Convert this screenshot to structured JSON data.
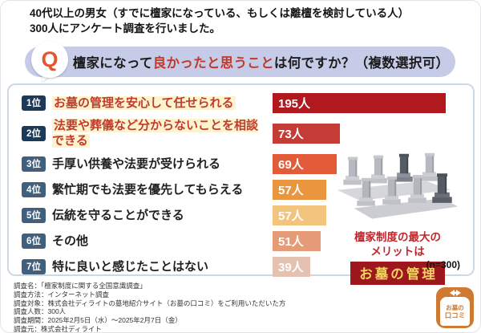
{
  "page": {
    "intro_line1": "40代以上の男女（すでに檀家になっている、もしくは離檀を検討している人）",
    "intro_line2": "300人にアンケート調査を行いました。",
    "question": {
      "icon": "Q",
      "prefix": "檀家になって",
      "highlight": "良かったと思うこと",
      "suffix": "は何ですか？（複数選択可）"
    }
  },
  "chart_data": {
    "type": "bar",
    "orientation": "horizontal",
    "title": "檀家になって良かったと思うことは何ですか？（複数選択可）",
    "unit": "人",
    "n_label": "(n=300)",
    "xlim": [
      0,
      200
    ],
    "categories": [
      "お墓の管理を安心して任せられる",
      "法要や葬儀など分からないことを相談できる",
      "手厚い供養や法要が受けられる",
      "繁忙期でも法要を優先してもらえる",
      "伝統を守ることができる",
      "その他",
      "特に良いと感じたことはない"
    ],
    "values": [
      195,
      73,
      69,
      57,
      57,
      51,
      39
    ],
    "rows": [
      {
        "rank": "1位",
        "label": "お墓の管理を安心して任せられる",
        "value": 195,
        "value_label": "195人",
        "color": "#b2191e",
        "badge_color": "#1b3a5a",
        "highlighted": true
      },
      {
        "rank": "2位",
        "label": "法要や葬儀など分からないことを相談できる",
        "value": 73,
        "value_label": "73人",
        "color": "#c53b35",
        "badge_color": "#1b3a5a",
        "highlighted": true
      },
      {
        "rank": "3位",
        "label": "手厚い供養や法要が受けられる",
        "value": 69,
        "value_label": "69人",
        "color": "#e25c3a",
        "badge_color": "#40607e",
        "highlighted": false
      },
      {
        "rank": "4位",
        "label": "繁忙期でも法要を優先してもらえる",
        "value": 57,
        "value_label": "57人",
        "color": "#ea963f",
        "badge_color": "#40607e",
        "highlighted": false
      },
      {
        "rank": "5位",
        "label": "伝統を守ることができる",
        "value": 57,
        "value_label": "57人",
        "color": "#f3c47d",
        "badge_color": "#40607e",
        "highlighted": false
      },
      {
        "rank": "6位",
        "label": "その他",
        "value": 51,
        "value_label": "51人",
        "color": "#e69b78",
        "badge_color": "#40607e",
        "highlighted": false
      },
      {
        "rank": "7位",
        "label": "特に良いと感じたことはない",
        "value": 39,
        "value_label": "39人",
        "color": "#e4c1b1",
        "badge_color": "#40607e",
        "highlighted": false
      }
    ]
  },
  "annotation": {
    "line1": "檀家制度の最大の",
    "line2": "メリットは",
    "badge": "お墓の管理"
  },
  "footer": {
    "lines": [
      "調査名：「檀家制度に関する全国意識調査」",
      "調査方法：インターネット調査",
      "調査対象：株式会社ディライトの墓地紹介サイト（お墓の口コミ）をご利用いただいた方",
      "調査人数：300人",
      "調査期間：2025年2月5日（水）～2025年2月7日（金）",
      "調査元：株式会社ディライト"
    ]
  },
  "logo": {
    "top": "お墓の",
    "bottom": "口コミ"
  },
  "colors": {
    "question_bar_bg": "#c6cbe7",
    "question_highlight": "#c0392b",
    "panel_border": "#ccd8e4",
    "rank_badge_dark": "#1b3a5a",
    "rank_badge_light": "#40607e",
    "label_highlight_bg": "#fcf3cf",
    "label_highlight_text": "#c23b2d",
    "annotation_red": "#c0272d",
    "annotation_badge_bg": "#9c181c",
    "annotation_badge_text": "#f6d463",
    "logo_orange": "#cf7a33"
  }
}
